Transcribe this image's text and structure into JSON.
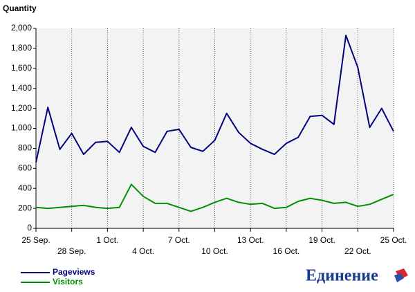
{
  "chart_data": {
    "type": "line",
    "y_label": "Quantity",
    "categories": [
      "25 Sep.",
      null,
      null,
      "28 Sep.",
      null,
      null,
      "1 Oct.",
      null,
      null,
      "4 Oct.",
      null,
      null,
      "7 Oct.",
      null,
      null,
      "10 Oct.",
      null,
      null,
      "13 Oct.",
      null,
      null,
      "16 Oct.",
      null,
      null,
      "19 Oct.",
      null,
      null,
      "22 Oct.",
      null,
      null,
      "25 Oct."
    ],
    "series": [
      {
        "name": "Pageviews",
        "color": "#000080",
        "values": [
          660,
          1210,
          790,
          950,
          740,
          860,
          870,
          760,
          1010,
          820,
          760,
          970,
          990,
          810,
          770,
          880,
          1150,
          960,
          850,
          790,
          740,
          850,
          910,
          1120,
          1130,
          1040,
          1930,
          1610,
          1010,
          1200,
          970
        ]
      },
      {
        "name": "Visitors",
        "color": "#009000",
        "values": [
          210,
          200,
          210,
          220,
          230,
          210,
          200,
          210,
          440,
          320,
          250,
          250,
          210,
          170,
          210,
          260,
          300,
          260,
          240,
          250,
          200,
          210,
          270,
          300,
          280,
          250,
          260,
          220,
          240,
          290,
          340
        ]
      }
    ],
    "ylim": [
      0,
      2000
    ],
    "yticks": [
      0,
      200,
      400,
      600,
      800,
      {
        "value": 1000,
        "label": "1,000"
      },
      {
        "value": 1200,
        "label": "1,200"
      },
      {
        "value": 1400,
        "label": "1,400"
      },
      {
        "value": 1600,
        "label": "1,600"
      },
      {
        "value": 1800,
        "label": "1,800"
      },
      {
        "value": 2000,
        "label": "2,000"
      }
    ],
    "grid": true,
    "background": "#f3f3f3",
    "watermark": "Единение"
  }
}
